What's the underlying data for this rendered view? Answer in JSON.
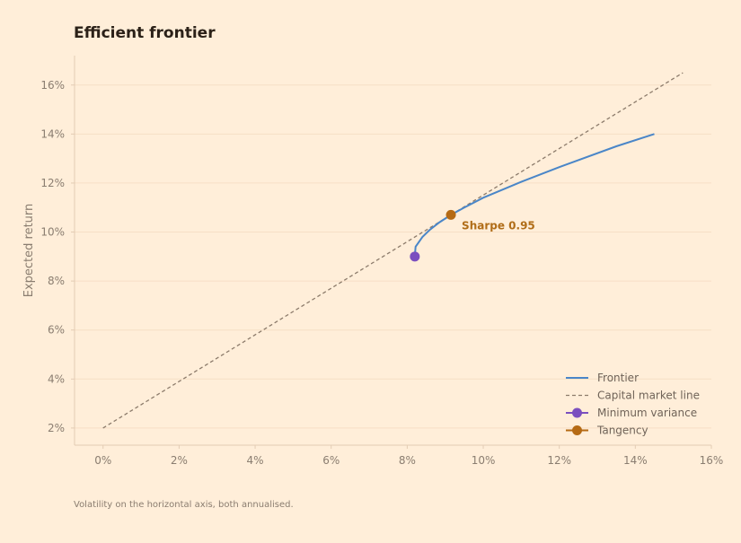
{
  "chart_data": {
    "type": "line",
    "title": "Efficient frontier",
    "xlabel": "",
    "ylabel": "Expected return",
    "note": "Volatility on the horizontal axis, both annualised.",
    "xlim": [
      -0.75,
      16
    ],
    "ylim": [
      1.3,
      17.2
    ],
    "xticks": [
      0,
      2,
      4,
      6,
      8,
      10,
      12,
      14,
      16
    ],
    "yticks": [
      2,
      4,
      6,
      8,
      10,
      12,
      14,
      16
    ],
    "tick_suffix": "%",
    "grid": true,
    "legend_position": "bottom-right",
    "series": [
      {
        "name": "Frontier",
        "kind": "line",
        "color": "#4a86c8",
        "dash": "solid",
        "points": [
          [
            8.2,
            9.0
          ],
          [
            8.22,
            9.4
          ],
          [
            8.4,
            9.8
          ],
          [
            8.6,
            10.1
          ],
          [
            8.85,
            10.4
          ],
          [
            9.15,
            10.7
          ],
          [
            9.5,
            11.0
          ],
          [
            10.0,
            11.4
          ],
          [
            11.0,
            12.05
          ],
          [
            12.0,
            12.65
          ],
          [
            13.5,
            13.5
          ],
          [
            14.5,
            14.0
          ]
        ]
      },
      {
        "name": "Capital market line",
        "kind": "line",
        "color": "#8c7b6b",
        "dash": "dashed",
        "points": [
          [
            0,
            2.0
          ],
          [
            15.25,
            16.5
          ]
        ]
      },
      {
        "name": "Minimum variance",
        "kind": "point",
        "color": "#7b4fbf",
        "points": [
          [
            8.2,
            9.0
          ]
        ]
      },
      {
        "name": "Tangency",
        "kind": "point",
        "color": "#b56a14",
        "points": [
          [
            9.15,
            10.7
          ]
        ],
        "label": "Sharpe 0.95"
      }
    ]
  }
}
